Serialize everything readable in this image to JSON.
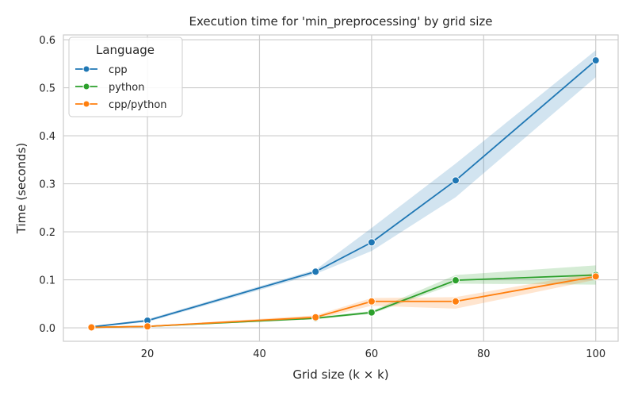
{
  "chart_data": {
    "type": "line",
    "title": "Execution time for 'min_preprocessing' by grid size",
    "xlabel": "Grid size (k × k)",
    "ylabel": "Time (seconds)",
    "xlim": [
      5,
      104
    ],
    "ylim": [
      -0.028,
      0.61
    ],
    "xticks": [
      20,
      40,
      60,
      80,
      100
    ],
    "xtick_labels": [
      "20",
      "40",
      "60",
      "80",
      "100"
    ],
    "yticks": [
      0.0,
      0.1,
      0.2,
      0.3,
      0.4,
      0.5,
      0.6
    ],
    "ytick_labels": [
      "0.0",
      "0.1",
      "0.2",
      "0.3",
      "0.4",
      "0.5",
      "0.6"
    ],
    "grid": true,
    "legend": {
      "title": "Language",
      "placement": "top-left"
    },
    "series": [
      {
        "name": "cpp",
        "color": "#1f77b4",
        "x": [
          10,
          20,
          50,
          60,
          75,
          100
        ],
        "y": [
          0.002,
          0.015,
          0.117,
          0.178,
          0.307,
          0.557
        ],
        "ci_low": [
          0.001,
          0.012,
          0.112,
          0.16,
          0.272,
          0.522
        ],
        "ci_high": [
          0.003,
          0.018,
          0.121,
          0.208,
          0.342,
          0.578
        ]
      },
      {
        "name": "python",
        "color": "#2ca02c",
        "x": [
          10,
          20,
          50,
          60,
          75,
          100
        ],
        "y": [
          0.001,
          0.003,
          0.02,
          0.032,
          0.099,
          0.11
        ],
        "ci_low": [
          0.001,
          0.002,
          0.018,
          0.029,
          0.092,
          0.09
        ],
        "ci_high": [
          0.002,
          0.004,
          0.022,
          0.035,
          0.11,
          0.13
        ]
      },
      {
        "name": "cpp/python",
        "color": "#ff7f0e",
        "x": [
          10,
          20,
          50,
          60,
          75,
          100
        ],
        "y": [
          0.001,
          0.003,
          0.022,
          0.055,
          0.055,
          0.107
        ],
        "ci_low": [
          0.001,
          0.002,
          0.018,
          0.046,
          0.04,
          0.1
        ],
        "ci_high": [
          0.002,
          0.004,
          0.026,
          0.062,
          0.064,
          0.115
        ]
      }
    ]
  }
}
